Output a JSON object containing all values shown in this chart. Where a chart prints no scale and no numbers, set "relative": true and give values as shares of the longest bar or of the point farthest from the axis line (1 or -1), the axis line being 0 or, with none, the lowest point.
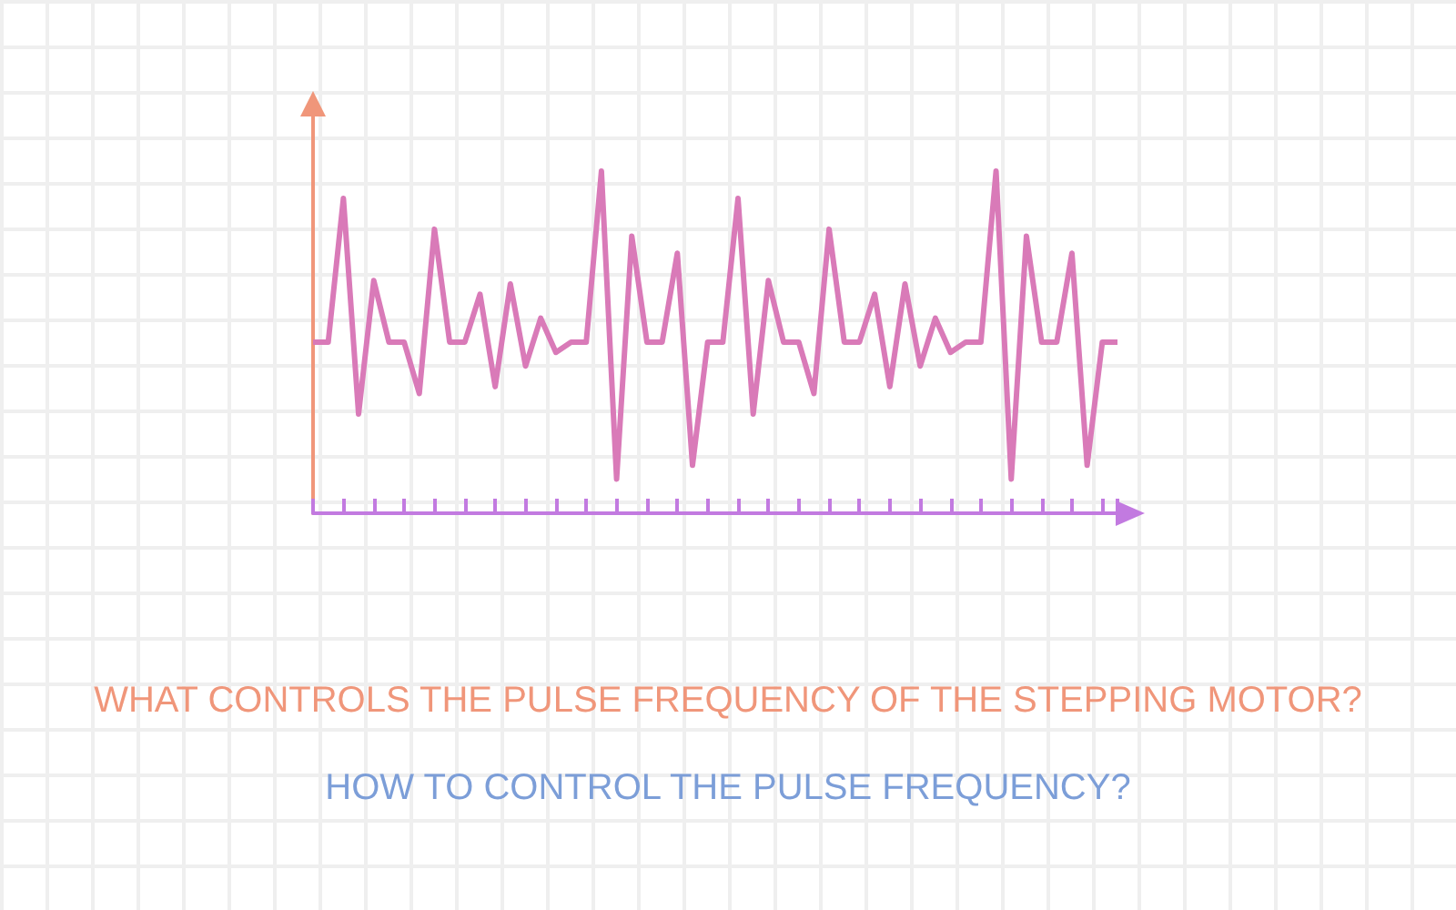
{
  "chart_data": {
    "type": "line",
    "title": "WHAT CONTROLS THE PULSE FREQUENCY OF THE STEPPING MOTOR?",
    "subtitle": "HOW TO CONTROL THE PULSE FREQUENCY?",
    "relative": true,
    "grid": false,
    "marker": "none",
    "line_style": "solid",
    "categories": [
      null,
      null,
      null,
      null,
      null,
      null,
      null,
      null,
      null,
      null,
      null,
      null,
      null,
      null,
      null,
      null,
      null,
      null,
      null,
      null,
      null,
      null,
      null,
      null,
      null,
      null,
      null,
      null,
      null,
      null,
      null,
      null,
      null,
      null,
      null,
      null,
      null,
      null,
      null,
      null,
      null,
      null,
      null,
      null,
      null,
      null,
      null,
      null,
      null,
      null,
      null,
      null,
      null,
      null
    ],
    "series": [
      {
        "color": "#d97ab8",
        "values": [
          0.5,
          0.5,
          0.92,
          0.29,
          0.68,
          0.5,
          0.5,
          0.35,
          0.83,
          0.5,
          0.5,
          0.64,
          0.37,
          0.67,
          0.43,
          0.57,
          0.47,
          0.5,
          0.5,
          1,
          0.1,
          0.81,
          0.5,
          0.5,
          0.76,
          0.14,
          0.5,
          0.5,
          0.92,
          0.29,
          0.68,
          0.5,
          0.5,
          0.35,
          0.83,
          0.5,
          0.5,
          0.64,
          0.37,
          0.67,
          0.43,
          0.57,
          0.47,
          0.5,
          0.5,
          1,
          0.1,
          0.81,
          0.5,
          0.5,
          0.76,
          0.14,
          0.5,
          0.5
        ]
      }
    ]
  }
}
